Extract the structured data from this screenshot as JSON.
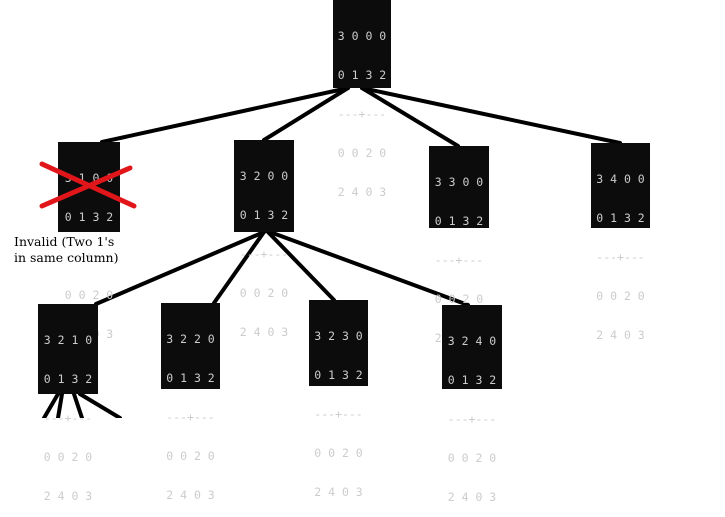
{
  "colors": {
    "node_bg": "#0c0c0c",
    "node_text": "#cccccc",
    "edge": "#000000",
    "invalid_mark": "#e0161b"
  },
  "tree": {
    "root": {
      "rows": [
        "3 0 0 0",
        "0 1 3 2",
        "---+---",
        "0 0 2 0",
        "2 4 0 3"
      ]
    },
    "level1": [
      {
        "rows": [
          "3 1 0 0",
          "0 1 3 2",
          "---+---",
          "0 0 2 0",
          "2 4 0 3"
        ],
        "invalid": true
      },
      {
        "rows": [
          "3 2 0 0",
          "0 1 3 2",
          "---+---",
          "0 0 2 0",
          "2 4 0 3"
        ]
      },
      {
        "rows": [
          "3 3 0 0",
          "0 1 3 2",
          "---+---",
          "0 0 2 0",
          "2 4 0 3"
        ]
      },
      {
        "rows": [
          "3 4 0 0",
          "0 1 3 2",
          "---+---",
          "0 0 2 0",
          "2 4 0 3"
        ]
      }
    ],
    "level2": [
      {
        "rows": [
          "3 2 1 0",
          "0 1 3 2",
          "---+---",
          "0 0 2 0",
          "2 4 0 3"
        ]
      },
      {
        "rows": [
          "3 2 2 0",
          "0 1 3 2",
          "---+---",
          "0 0 2 0",
          "2 4 0 3"
        ]
      },
      {
        "rows": [
          "3 2 3 0",
          "0 1 3 2",
          "---+---",
          "0 0 2 0",
          "2 4 0 3"
        ]
      },
      {
        "rows": [
          "3 2 4 0",
          "0 1 3 2",
          "---+---",
          "0 0 2 0",
          "2 4 0 3"
        ]
      }
    ]
  },
  "invalid_note": {
    "line1": "Invalid (Two 1's",
    "line2": "in same column)"
  }
}
